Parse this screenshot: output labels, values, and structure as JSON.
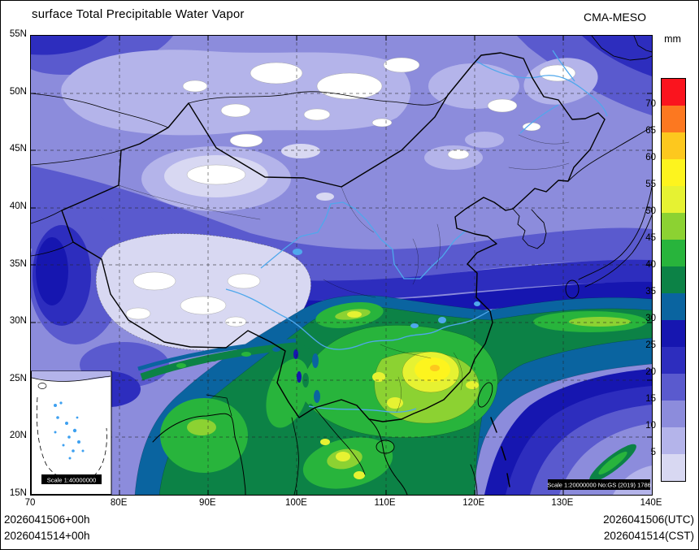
{
  "header": {
    "title": "surface Total Precipitable Water Vapor",
    "model": "CMA-MESO"
  },
  "colorbar": {
    "unit": "mm",
    "tick_labels": [
      "70",
      "65",
      "60",
      "55",
      "50",
      "45",
      "40",
      "35",
      "30",
      "25",
      "20",
      "15",
      "10",
      "5"
    ],
    "colors_top_to_bottom": [
      "#fa141e",
      "#fc7820",
      "#fdc81e",
      "#fdf41e",
      "#e6f232",
      "#8cd232",
      "#28b43c",
      "#0c8246",
      "#0a64a0",
      "#1616b0",
      "#2d2dbe",
      "#5a5ace",
      "#8c8cdc",
      "#b4b4ea",
      "#d8d8f2"
    ]
  },
  "axes": {
    "lat_labels": [
      "55N",
      "50N",
      "45N",
      "40N",
      "35N",
      "30N",
      "25N",
      "20N",
      "15N"
    ],
    "lon_labels": [
      "70",
      "80E",
      "90E",
      "100E",
      "110E",
      "120E",
      "130E",
      "140E"
    ]
  },
  "map": {
    "scale_badge": "Scale 1:20000000 No:GS (2019) 1786",
    "inset": {
      "scale_badge": "Scale 1:40000000"
    }
  },
  "footer": {
    "runs": [
      {
        "left": "2026041506+00h",
        "right": "2026041506(UTC)"
      },
      {
        "left": "2026041514+00h",
        "right": "2026041514(CST)"
      }
    ]
  },
  "chart_data": {
    "type": "heatmap",
    "subtype": "filled_contour_map",
    "title": "surface Total Precipitable Water Vapor",
    "model": "CMA-MESO",
    "unit": "mm",
    "contour_levels": [
      5,
      10,
      15,
      20,
      25,
      30,
      35,
      40,
      45,
      50,
      55,
      60,
      65,
      70
    ],
    "palette_low_to_high": [
      "#d8d8f2",
      "#b4b4ea",
      "#8c8cdc",
      "#5a5ace",
      "#2d2dbe",
      "#1616b0",
      "#0a64a0",
      "#0c8246",
      "#28b43c",
      "#8cd232",
      "#e6f232",
      "#fdf41e",
      "#fdc81e",
      "#fc7820",
      "#fa141e"
    ],
    "lon_range": [
      70,
      140
    ],
    "lat_range": [
      15,
      55
    ],
    "times": {
      "init": "2026041506+00h",
      "valid_cst_run": "2026041514+00h",
      "utc_label": "2026041506(UTC)",
      "cst_label": "2026041514(CST)"
    },
    "pattern_summary": "Low values (5-15 mm, purples/white) across N China, Mongolia and Tibetan Plateau; values increase southeastward through 20-35 mm blues; broad 35-55 mm greens over S China, Indochina and Bay of Bengal with 50-60 mm yellow cores near 113-117E 24-28N; moist 35-45 mm band extends E along 30N to 140E; drier 10-25 mm over SE ocean corner."
  }
}
